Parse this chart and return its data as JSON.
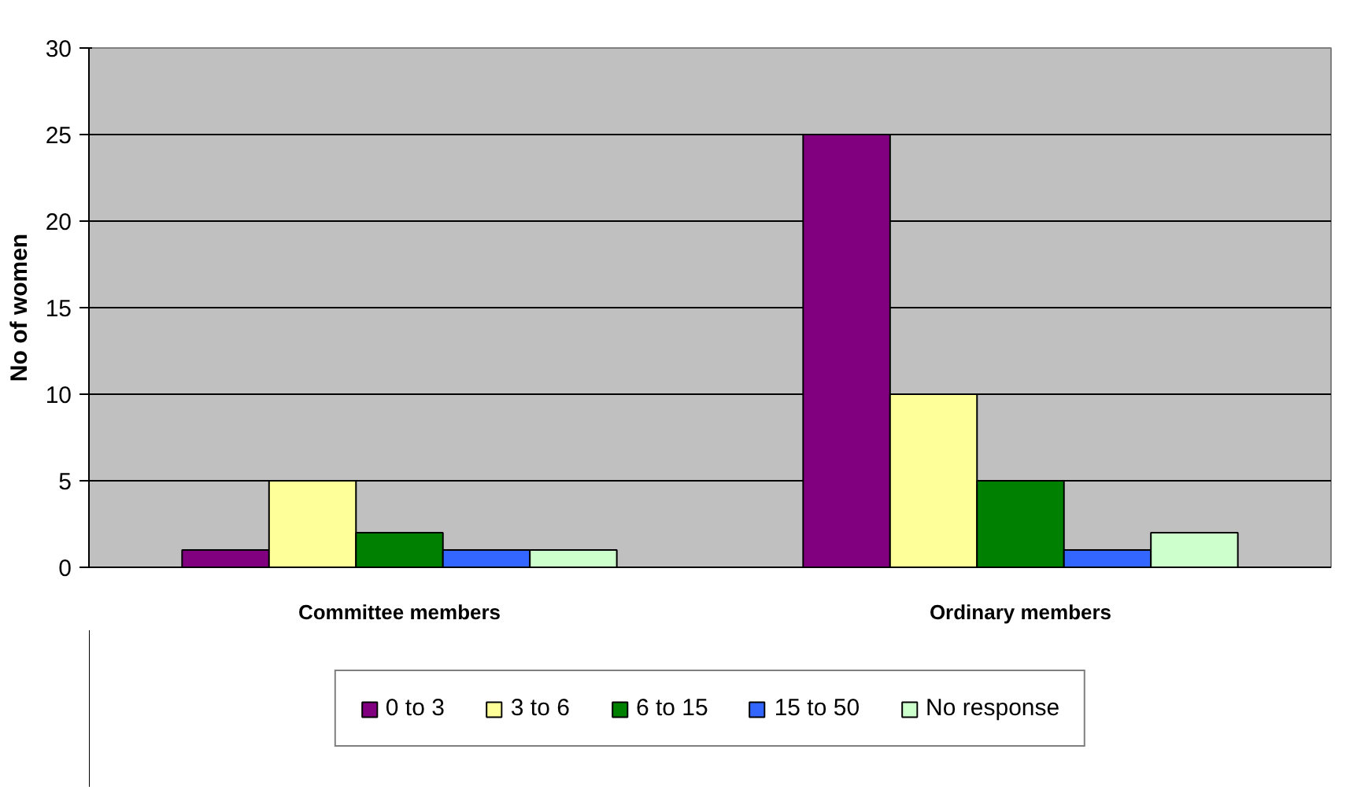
{
  "chart_data": {
    "type": "bar",
    "ylabel": "No of women",
    "categories": [
      "Committee members",
      "Ordinary members"
    ],
    "series": [
      {
        "name": "0 to 3",
        "color": "#800080",
        "values": [
          1,
          25
        ]
      },
      {
        "name": "3 to 6",
        "color": "#ffff99",
        "values": [
          5,
          10
        ]
      },
      {
        "name": "6 to 15",
        "color": "#008000",
        "values": [
          2,
          5
        ]
      },
      {
        "name": "15 to 50",
        "color": "#3366ff",
        "values": [
          1,
          1
        ]
      },
      {
        "name": "No response",
        "color": "#ccffcc",
        "values": [
          1,
          2
        ]
      }
    ],
    "ylim": [
      0,
      30
    ],
    "yticks": [
      0,
      5,
      10,
      15,
      20,
      25,
      30
    ],
    "grid": "y",
    "legend": "bottom"
  }
}
